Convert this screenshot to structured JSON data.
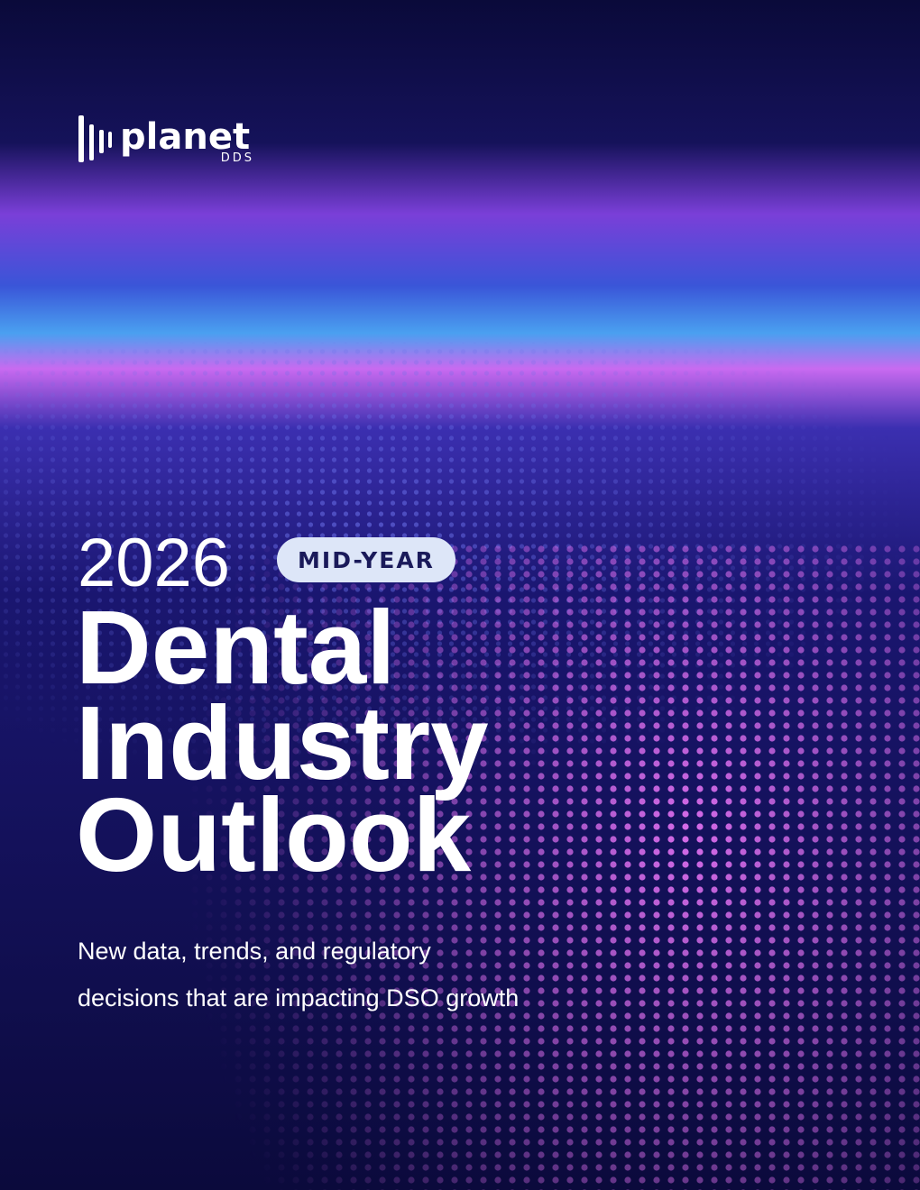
{
  "logo": {
    "name": "planet",
    "sub": "DDS"
  },
  "cover": {
    "year": "2026",
    "badge": "MID-YEAR",
    "title_lines": [
      "Dental",
      "Industry",
      "Outlook"
    ],
    "subtitle_lines": [
      "New data, trends, and regulatory",
      "decisions that are impacting DSO growth"
    ]
  }
}
